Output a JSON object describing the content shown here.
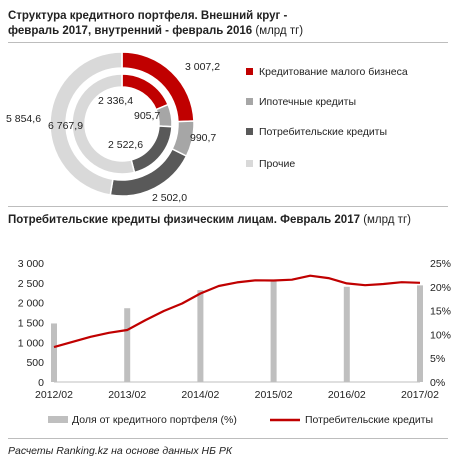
{
  "title1": {
    "bold": "Структура  кредитного портфеля. Внешний круг - февраль  2017, внутренний  - февраль  2016",
    "unit": "(млрд тг)"
  },
  "title2": {
    "bold": "Потребительские  кредиты физическим  лицам. Февраль  2017",
    "unit": "(млрд тг)"
  },
  "footer": "Расчеты Ranking.kz на основе данных НБ РК",
  "chart_data": [
    {
      "type": "donut",
      "categories": [
        "Кредитование малого бизнеса",
        "Ипотечные кредиты",
        "Потребительские кредиты",
        "Прочие"
      ],
      "colors": [
        "#c00000",
        "#a6a6a6",
        "#595959",
        "#d9d9d9"
      ],
      "series": [
        {
          "name": "февраль 2017",
          "ring": "outer",
          "values": [
            3007.2,
            990.7,
            2502.0,
            5854.6
          ],
          "labels": [
            "3 007,2",
            "990,7",
            "2 502,0",
            "5 854,6"
          ]
        },
        {
          "name": "февраль 2016",
          "ring": "inner",
          "values": [
            2336.4,
            905.7,
            2522.6,
            6767.9
          ],
          "labels": [
            "2 336,4",
            "905,7",
            "2 522,6",
            "6 767,9"
          ]
        }
      ]
    },
    {
      "type": "bar+line",
      "x_ticks": [
        "2012/02",
        "2013/02",
        "2014/02",
        "2015/02",
        "2016/02",
        "2017/02"
      ],
      "y_left": {
        "min": 0,
        "max": 3000,
        "ticks": [
          "0",
          "500",
          "1 000",
          "1 500",
          "2 000",
          "2 500",
          "3 000"
        ]
      },
      "y_right": {
        "min": 0,
        "max": 25,
        "ticks": [
          "0%",
          "5%",
          "10%",
          "15%",
          "20%",
          "25%"
        ]
      },
      "bars": {
        "name": "Доля от кредитного портфеля (%)",
        "color": "#bfbfbf",
        "x": [
          "2012/02",
          "2013/02",
          "2014/02",
          "2015/02",
          "2016/02",
          "2017/02"
        ],
        "values": [
          12.3,
          15.5,
          19.3,
          21.5,
          20.0,
          20.3
        ]
      },
      "line": {
        "name": "Потребительские кредиты",
        "color": "#c00000",
        "x": [
          "2012/02",
          "2012/05",
          "2012/08",
          "2012/11",
          "2013/02",
          "2013/05",
          "2013/08",
          "2013/11",
          "2014/02",
          "2014/05",
          "2014/08",
          "2014/11",
          "2015/02",
          "2015/05",
          "2015/08",
          "2015/11",
          "2016/02",
          "2016/05",
          "2016/08",
          "2016/11",
          "2017/02"
        ],
        "values": [
          880,
          1010,
          1140,
          1240,
          1310,
          1560,
          1790,
          1980,
          2230,
          2420,
          2510,
          2565,
          2560,
          2580,
          2680,
          2620,
          2485,
          2440,
          2470,
          2515,
          2500
        ]
      }
    }
  ]
}
